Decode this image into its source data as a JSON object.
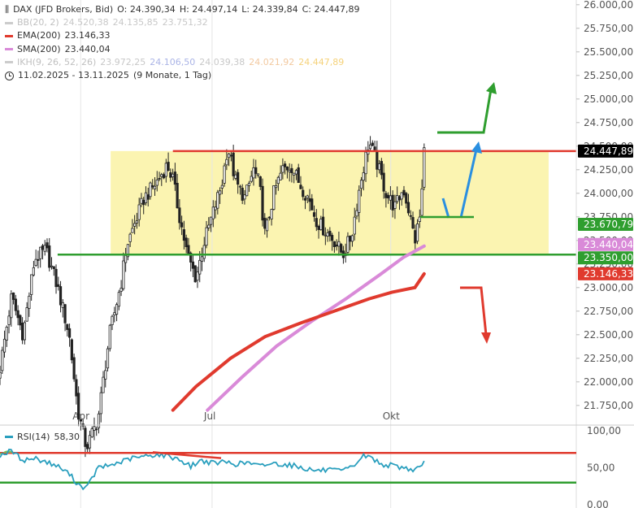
{
  "legend": {
    "title": "DAX (JFD Brokers, Bid)",
    "open": "O: 24.390,34",
    "high": "H: 24.497,14",
    "low": "L: 24.339,84",
    "close": "C: 24.447,89",
    "indicators": [
      {
        "label": "BB(20, 2)",
        "values": [
          "24.520,38",
          "24.135,85",
          "23.751,32"
        ],
        "color": "#cccccc",
        "values_color": "#c8c8c8",
        "label_color": "#c0c0c0"
      },
      {
        "label": "EMA(200)",
        "values": [
          "23.146,33"
        ],
        "color": "#e03a2e",
        "values_color": "#333333",
        "label_color": "#333333"
      },
      {
        "label": "SMA(200)",
        "values": [
          "23.440,04"
        ],
        "color": "#d98ad8",
        "values_color": "#333333",
        "label_color": "#333333"
      },
      {
        "label": "IKH(9, 26, 52, 26)",
        "values": [
          "23.972,25",
          "24.106,50",
          "24.039,38",
          "24.021,92",
          "24.447,89"
        ],
        "color": "#cccccc",
        "values_color": "#c8c8c8",
        "label_color": "#c0c0c0",
        "value_colors": [
          "#c8c8c8",
          "#aab4e6",
          "#c8c8c8",
          "#f2c9a0",
          "#f5d27a"
        ]
      }
    ],
    "range": "11.02.2025 - 13.11.2025",
    "range_note": "(9 Monate, 1 Tag)"
  },
  "rsi_legend": {
    "label": "RSI(14)",
    "value": "58,30"
  },
  "chart_data": {
    "type": "candlestick",
    "title": "DAX (JFD Brokers, Bid)",
    "period": "11.02.2025 - 13.11.2025",
    "interval": "1 Tag",
    "y_axis": {
      "range": [
        21550,
        26050
      ],
      "scale": "linear",
      "side": "right",
      "ticks": [
        "21.750,00",
        "22.000,00",
        "22.250,00",
        "22.500,00",
        "22.750,00",
        "23.000,00",
        "23.250,00",
        "23.500,00",
        "23.750,00",
        "24.000,00",
        "24.250,00",
        "24.500,00",
        "24.750,00",
        "25.000,00",
        "25.250,00",
        "25.500,00",
        "25.750,00",
        "26.000,00"
      ]
    },
    "x_axis": {
      "labels": [
        "Apr",
        "Jul",
        "Okt"
      ]
    },
    "price_tags": [
      {
        "value": 24447.89,
        "label": "24.447,89",
        "bg": "#000000",
        "fg": "#ffffff"
      },
      {
        "value": 23670.79,
        "label": "23.670,79",
        "bg": "#2f9e2f",
        "fg": "#ffffff"
      },
      {
        "value": 23440.04,
        "label": "23.440,04",
        "bg": "#d98ad8",
        "fg": "#ffffff"
      },
      {
        "value": 23350.0,
        "label": "23.350,00",
        "bg": "#2f9e2f",
        "fg": "#ffffff"
      },
      {
        "value": 23146.33,
        "label": "23.146,33",
        "bg": "#e03a2e",
        "fg": "#ffffff"
      }
    ],
    "horizontal_lines": [
      {
        "value": 24447.89,
        "color": "#e03a2e"
      },
      {
        "value": 23350.0,
        "color": "#2f9e2f"
      }
    ],
    "range_box": {
      "top": 24447.89,
      "bottom": 23350.0,
      "color": "#fbf3a8"
    },
    "ema200": [
      [
        0.3,
        21700
      ],
      [
        0.34,
        21950
      ],
      [
        0.4,
        22250
      ],
      [
        0.46,
        22480
      ],
      [
        0.52,
        22620
      ],
      [
        0.58,
        22750
      ],
      [
        0.64,
        22880
      ],
      [
        0.68,
        22950
      ],
      [
        0.72,
        23000
      ],
      [
        0.736,
        23146
      ]
    ],
    "sma200": [
      [
        0.36,
        21700
      ],
      [
        0.42,
        22050
      ],
      [
        0.48,
        22380
      ],
      [
        0.54,
        22640
      ],
      [
        0.6,
        22880
      ],
      [
        0.66,
        23140
      ],
      [
        0.7,
        23320
      ],
      [
        0.736,
        23440
      ]
    ],
    "series_close_anchors": [
      [
        0.0,
        22150
      ],
      [
        0.02,
        22900
      ],
      [
        0.04,
        22500
      ],
      [
        0.06,
        23300
      ],
      [
        0.08,
        23400
      ],
      [
        0.1,
        23000
      ],
      [
        0.12,
        22500
      ],
      [
        0.135,
        21700
      ],
      [
        0.15,
        21300
      ],
      [
        0.17,
        21600
      ],
      [
        0.19,
        22500
      ],
      [
        0.21,
        23050
      ],
      [
        0.22,
        23450
      ],
      [
        0.235,
        23700
      ],
      [
        0.25,
        23950
      ],
      [
        0.27,
        24100
      ],
      [
        0.29,
        24300
      ],
      [
        0.3,
        24150
      ],
      [
        0.31,
        23800
      ],
      [
        0.325,
        23350
      ],
      [
        0.34,
        23100
      ],
      [
        0.355,
        23500
      ],
      [
        0.37,
        23800
      ],
      [
        0.385,
        24100
      ],
      [
        0.395,
        24500
      ],
      [
        0.41,
        24100
      ],
      [
        0.425,
        23950
      ],
      [
        0.44,
        24250
      ],
      [
        0.45,
        24100
      ],
      [
        0.46,
        23550
      ],
      [
        0.475,
        24000
      ],
      [
        0.49,
        24250
      ],
      [
        0.505,
        24300
      ],
      [
        0.52,
        24100
      ],
      [
        0.535,
        23950
      ],
      [
        0.55,
        23700
      ],
      [
        0.565,
        23600
      ],
      [
        0.58,
        23500
      ],
      [
        0.595,
        23350
      ],
      [
        0.61,
        23550
      ],
      [
        0.625,
        24100
      ],
      [
        0.64,
        24550
      ],
      [
        0.655,
        24300
      ],
      [
        0.67,
        24000
      ],
      [
        0.685,
        23850
      ],
      [
        0.7,
        24050
      ],
      [
        0.71,
        23800
      ],
      [
        0.72,
        23500
      ],
      [
        0.73,
        23800
      ],
      [
        0.736,
        24448
      ]
    ],
    "annotations": [
      {
        "type": "arrow",
        "direction": "up",
        "color": "#2f9e2f"
      },
      {
        "type": "arrow",
        "direction": "up",
        "color": "#2a8fe0"
      },
      {
        "type": "arrow",
        "direction": "down",
        "color": "#e03a2e"
      },
      {
        "type": "line",
        "color": "#2a8fe0"
      },
      {
        "type": "line",
        "color": "#2f9e2f"
      }
    ],
    "rsi": {
      "label": "RSI(14)",
      "value": 58.3,
      "range": [
        0,
        100
      ],
      "ticks": [
        "100,00",
        "50,00",
        "0,00"
      ],
      "levels": [
        70,
        30
      ],
      "anchors": [
        [
          0.0,
          67
        ],
        [
          0.02,
          73
        ],
        [
          0.04,
          60
        ],
        [
          0.06,
          63
        ],
        [
          0.08,
          58
        ],
        [
          0.1,
          52
        ],
        [
          0.12,
          42
        ],
        [
          0.135,
          28
        ],
        [
          0.15,
          22
        ],
        [
          0.17,
          50
        ],
        [
          0.19,
          53
        ],
        [
          0.21,
          58
        ],
        [
          0.23,
          63
        ],
        [
          0.25,
          65
        ],
        [
          0.27,
          68
        ],
        [
          0.29,
          66
        ],
        [
          0.31,
          62
        ],
        [
          0.33,
          52
        ],
        [
          0.35,
          60
        ],
        [
          0.37,
          56
        ],
        [
          0.39,
          58
        ],
        [
          0.41,
          55
        ],
        [
          0.43,
          57
        ],
        [
          0.45,
          52
        ],
        [
          0.47,
          56
        ],
        [
          0.49,
          55
        ],
        [
          0.51,
          53
        ],
        [
          0.53,
          49
        ],
        [
          0.55,
          46
        ],
        [
          0.57,
          47
        ],
        [
          0.59,
          45
        ],
        [
          0.61,
          50
        ],
        [
          0.63,
          66
        ],
        [
          0.645,
          64
        ],
        [
          0.66,
          55
        ],
        [
          0.68,
          53
        ],
        [
          0.7,
          50
        ],
        [
          0.72,
          47
        ],
        [
          0.736,
          58
        ]
      ]
    }
  }
}
